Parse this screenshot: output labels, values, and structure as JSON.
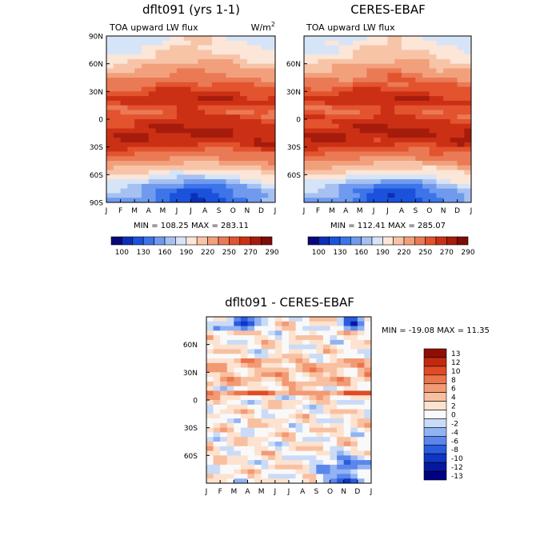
{
  "chart_data": [
    {
      "type": "heatmap",
      "title": "dflt091 (yrs 1-1)",
      "subtitle_left": "TOA upward LW flux",
      "units_base": "W/m",
      "units_exp": "2",
      "x_ticks": [
        "J",
        "F",
        "M",
        "A",
        "M",
        "J",
        "J",
        "A",
        "S",
        "O",
        "N",
        "D",
        "J"
      ],
      "y_ticks": [
        "90N",
        "60N",
        "30N",
        "0",
        "30S",
        "60S",
        "90S"
      ],
      "ylim": [
        -90,
        90
      ],
      "stats_text": "MIN = 108.25 MAX = 283.11",
      "min": 108.25,
      "max": 283.11,
      "colorbar_labels": [
        "100",
        "130",
        "160",
        "190",
        "220",
        "250",
        "270",
        "290"
      ],
      "colorbar_levels": [
        100,
        115,
        130,
        145,
        160,
        175,
        190,
        205,
        220,
        235,
        250,
        260,
        270,
        280,
        290
      ],
      "zonal_profile_lat": [
        -90,
        -75,
        -60,
        -45,
        -30,
        -15,
        0,
        10,
        20,
        30,
        45,
        60,
        75,
        90
      ],
      "zonal_profile_jan": [
        160,
        175,
        205,
        240,
        265,
        270,
        255,
        245,
        265,
        255,
        230,
        205,
        185,
        175
      ],
      "zonal_profile_jul": [
        115,
        125,
        185,
        225,
        255,
        275,
        265,
        255,
        270,
        265,
        245,
        225,
        210,
        200
      ]
    },
    {
      "type": "heatmap",
      "title": "CERES-EBAF",
      "subtitle_left": "TOA upward LW flux",
      "x_ticks": [
        "J",
        "F",
        "M",
        "A",
        "M",
        "J",
        "J",
        "A",
        "S",
        "O",
        "N",
        "D",
        "J"
      ],
      "y_ticks": [
        "60N",
        "30N",
        "0",
        "30S",
        "60S"
      ],
      "ylim": [
        -90,
        90
      ],
      "stats_text": "MIN = 112.41 MAX = 285.07",
      "min": 112.41,
      "max": 285.07,
      "colorbar_labels": [
        "100",
        "130",
        "160",
        "190",
        "220",
        "250",
        "270",
        "290"
      ],
      "colorbar_levels": [
        100,
        115,
        130,
        145,
        160,
        175,
        190,
        205,
        220,
        235,
        250,
        260,
        270,
        280,
        290
      ]
    },
    {
      "type": "heatmap",
      "title": "dflt091 - CERES-EBAF",
      "x_ticks": [
        "J",
        "F",
        "M",
        "A",
        "M",
        "J",
        "J",
        "A",
        "S",
        "O",
        "N",
        "D",
        "J"
      ],
      "y_ticks": [
        "60N",
        "30N",
        "0",
        "30S",
        "60S"
      ],
      "ylim": [
        -90,
        90
      ],
      "stats_text": "MIN = -19.08 MAX =  11.35",
      "min": -19.08,
      "max": 11.35,
      "colorbar_labels": [
        "13",
        "12",
        "10",
        "8",
        "6",
        "4",
        "2",
        "0",
        "-2",
        "-4",
        "-6",
        "-8",
        "-10",
        "-12",
        "-13"
      ],
      "colorbar_levels": [
        -13,
        -12,
        -10,
        -8,
        -6,
        -4,
        -2,
        0,
        2,
        4,
        6,
        8,
        10,
        12,
        13
      ]
    }
  ],
  "colors": {
    "flux_palette": [
      "#08087a",
      "#0c2fb8",
      "#1a52dc",
      "#3d74ea",
      "#6f9aee",
      "#a6c1f1",
      "#d6e4f7",
      "#fbe6d8",
      "#f8c4a8",
      "#f2a07c",
      "#ea7a55",
      "#e2532e",
      "#cc3014",
      "#a51c0c",
      "#7c0d07"
    ],
    "diff_palette": [
      "#000080",
      "#06189e",
      "#0f36c4",
      "#2a5ce0",
      "#5b86ec",
      "#92b3f2",
      "#c9dbf7",
      "#f9f9f9",
      "#fde2d0",
      "#f8c0a0",
      "#f29a74",
      "#eb744c",
      "#df4b26",
      "#c22a10",
      "#8e0e04"
    ]
  }
}
